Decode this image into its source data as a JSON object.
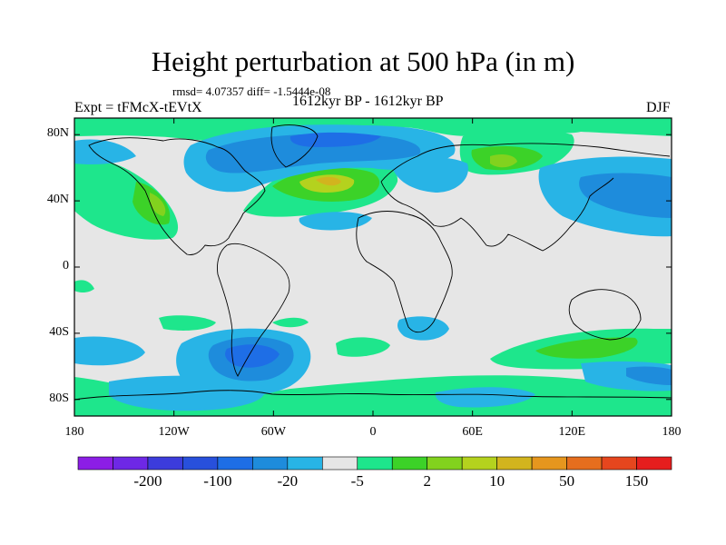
{
  "title": "Height perturbation at 500 hPa (in m)",
  "stats": "rmsd= 4.07357 diff= -1.5444e-08",
  "experiment": "Expt = tFMcX-tEVtX",
  "period": "1612kyr BP - 1612kyr BP",
  "season": "DJF",
  "map": {
    "projection": "cylindrical equidistant",
    "lon_range": [
      -180,
      180
    ],
    "lat_range": [
      -90,
      90
    ],
    "y_ticks": [
      {
        "lat": 80,
        "label": "80N"
      },
      {
        "lat": 40,
        "label": "40N"
      },
      {
        "lat": 0,
        "label": "0"
      },
      {
        "lat": -40,
        "label": "40S"
      },
      {
        "lat": -80,
        "label": "80S"
      }
    ],
    "x_ticks": [
      {
        "lon": -180,
        "label": "180"
      },
      {
        "lon": -120,
        "label": "120W"
      },
      {
        "lon": -60,
        "label": "60W"
      },
      {
        "lon": 0,
        "label": "0"
      },
      {
        "lon": 60,
        "label": "60E"
      },
      {
        "lon": 120,
        "label": "120E"
      },
      {
        "lon": 180,
        "label": "180"
      }
    ],
    "background_color": "#e6e6e6"
  },
  "colorbar": {
    "colors": [
      "#8c1ee6",
      "#6e28e6",
      "#3c3cdc",
      "#2850dc",
      "#1e6ee6",
      "#1e8cdc",
      "#28b4e6",
      "#e6e6e6",
      "#1ee68c",
      "#3cd228",
      "#82d21e",
      "#b4d21e",
      "#d2b41e",
      "#e6961e",
      "#e66e1e",
      "#e6461e",
      "#e61e1e"
    ],
    "labels": [
      "-200",
      "-100",
      "-20",
      "-5",
      "2",
      "10",
      "50",
      "150"
    ]
  }
}
